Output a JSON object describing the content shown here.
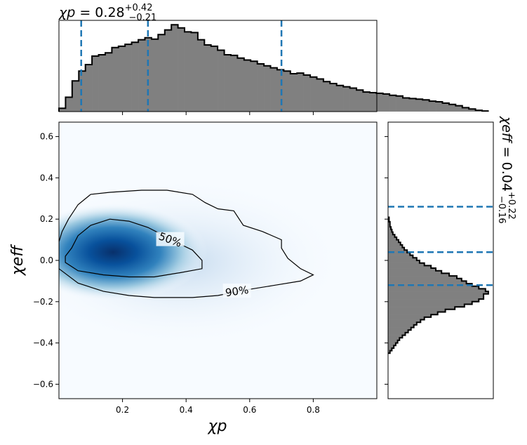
{
  "chart_data": [
    {
      "type": "histogram",
      "title": "χp = 0.28 +0.42 −0.21",
      "title_parts": {
        "lhs": "χp",
        "eq": " = 0.28",
        "sup": "+0.42",
        "sub": "−0.21"
      },
      "x_range": [
        0.0,
        1.0
      ],
      "bin_edges_start": 0.0,
      "bin_width": 0.0208,
      "density": [
        0.05,
        0.22,
        0.47,
        0.62,
        0.72,
        0.85,
        0.87,
        0.9,
        0.98,
        1.0,
        1.03,
        1.06,
        1.1,
        1.13,
        1.11,
        1.18,
        1.25,
        1.33,
        1.28,
        1.22,
        1.21,
        1.1,
        1.02,
        1.0,
        0.94,
        0.87,
        0.86,
        0.82,
        0.79,
        0.77,
        0.73,
        0.7,
        0.67,
        0.64,
        0.62,
        0.58,
        0.59,
        0.56,
        0.53,
        0.5,
        0.46,
        0.43,
        0.4,
        0.38,
        0.36,
        0.33,
        0.3,
        0.29,
        0.28,
        0.27,
        0.25,
        0.24,
        0.21,
        0.2,
        0.19,
        0.18,
        0.16,
        0.15,
        0.13,
        0.11,
        0.09,
        0.06,
        0.04,
        0.02,
        0.01
      ],
      "quantiles": [
        0.07,
        0.28,
        0.7
      ],
      "median_color": "#1f77b4",
      "fill_color": "#808080"
    },
    {
      "type": "heatmap",
      "xlabel": "χp",
      "ylabel": "χeff",
      "xlim": [
        0.0,
        1.0
      ],
      "ylim": [
        -0.67,
        0.67
      ],
      "x_ticks": [
        0.2,
        0.4,
        0.6,
        0.8
      ],
      "x_tick_labels": [
        "0.2",
        "0.4",
        "0.6",
        "0.8"
      ],
      "y_ticks": [
        -0.6,
        -0.4,
        -0.2,
        0.0,
        0.2,
        0.4,
        0.6
      ],
      "y_tick_labels": [
        "−0.6",
        "−0.4",
        "−0.2",
        "0.0",
        "0.2",
        "0.4",
        "0.6"
      ],
      "colormap": "Blues",
      "density_peak": {
        "x": 0.17,
        "y": 0.04
      },
      "contours": [
        {
          "label": "50%",
          "label_at": [
            0.35,
            0.1
          ],
          "points": [
            [
              0.02,
              0.02
            ],
            [
              0.02,
              -0.01
            ],
            [
              0.06,
              -0.05
            ],
            [
              0.14,
              -0.07
            ],
            [
              0.22,
              -0.08
            ],
            [
              0.3,
              -0.08
            ],
            [
              0.38,
              -0.06
            ],
            [
              0.45,
              -0.04
            ],
            [
              0.45,
              0.0
            ],
            [
              0.42,
              0.05
            ],
            [
              0.38,
              0.08
            ],
            [
              0.33,
              0.12
            ],
            [
              0.28,
              0.16
            ],
            [
              0.22,
              0.19
            ],
            [
              0.16,
              0.2
            ],
            [
              0.1,
              0.17
            ],
            [
              0.06,
              0.12
            ],
            [
              0.04,
              0.06
            ],
            [
              0.02,
              0.02
            ]
          ]
        },
        {
          "label": "90%",
          "label_at": [
            0.56,
            -0.15
          ],
          "points": [
            [
              0.0,
              0.09
            ],
            [
              0.0,
              -0.04
            ],
            [
              0.06,
              -0.11
            ],
            [
              0.14,
              -0.15
            ],
            [
              0.22,
              -0.17
            ],
            [
              0.3,
              -0.18
            ],
            [
              0.42,
              -0.18
            ],
            [
              0.5,
              -0.17
            ],
            [
              0.6,
              -0.14
            ],
            [
              0.68,
              -0.12
            ],
            [
              0.76,
              -0.1
            ],
            [
              0.8,
              -0.07
            ],
            [
              0.76,
              -0.04
            ],
            [
              0.72,
              0.01
            ],
            [
              0.7,
              0.06
            ],
            [
              0.7,
              0.1
            ],
            [
              0.64,
              0.14
            ],
            [
              0.58,
              0.17
            ],
            [
              0.55,
              0.24
            ],
            [
              0.5,
              0.25
            ],
            [
              0.46,
              0.28
            ],
            [
              0.42,
              0.32
            ],
            [
              0.34,
              0.34
            ],
            [
              0.26,
              0.34
            ],
            [
              0.16,
              0.33
            ],
            [
              0.1,
              0.32
            ],
            [
              0.06,
              0.27
            ],
            [
              0.03,
              0.2
            ],
            [
              0.01,
              0.14
            ],
            [
              0.0,
              0.09
            ]
          ]
        }
      ]
    },
    {
      "type": "histogram",
      "orientation": "horizontal",
      "title": "χeff = 0.04 +0.22 −0.16",
      "title_parts": {
        "lhs": "χeff",
        "eq": " = 0.04",
        "sup": "+0.22",
        "sub": "−0.16"
      },
      "y_range": [
        -0.67,
        0.67
      ],
      "bin_edges_start": -0.45,
      "bin_width": 0.0125,
      "density": [
        0.02,
        0.04,
        0.06,
        0.08,
        0.1,
        0.12,
        0.15,
        0.18,
        0.21,
        0.24,
        0.27,
        0.3,
        0.34,
        0.38,
        0.45,
        0.52,
        0.6,
        0.7,
        0.8,
        0.88,
        0.95,
        1.0,
        1.0,
        1.05,
        1.02,
        0.95,
        0.88,
        0.82,
        0.77,
        0.72,
        0.64,
        0.56,
        0.5,
        0.45,
        0.38,
        0.33,
        0.3,
        0.26,
        0.23,
        0.2,
        0.17,
        0.15,
        0.13,
        0.11,
        0.09,
        0.07,
        0.05,
        0.04,
        0.03,
        0.02,
        0.02,
        0.01,
        0.01
      ],
      "quantiles": [
        -0.12,
        0.04,
        0.26
      ],
      "median_color": "#1f77b4",
      "fill_color": "#808080"
    }
  ]
}
